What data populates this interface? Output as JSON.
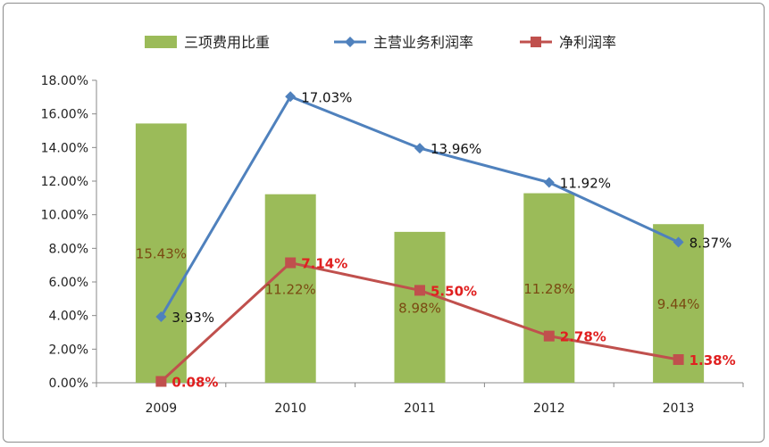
{
  "chart_data": {
    "type": "bar+line",
    "categories": [
      "2009",
      "2010",
      "2011",
      "2012",
      "2013"
    ],
    "ylim": [
      0,
      18
    ],
    "ytick_labels": [
      "0.00%",
      "2.00%",
      "4.00%",
      "6.00%",
      "8.00%",
      "10.00%",
      "12.00%",
      "14.00%",
      "16.00%",
      "18.00%"
    ],
    "legend_position": "top",
    "grid": false,
    "series": [
      {
        "name": "三项费用比重",
        "kind": "bar",
        "color": "#9bbb59",
        "values": [
          15.43,
          11.22,
          8.98,
          11.28,
          9.44
        ],
        "labels": [
          "15.43%",
          "11.22%",
          "8.98%",
          "11.28%",
          "9.44%"
        ]
      },
      {
        "name": "主营业务利润率",
        "kind": "line",
        "marker": "diamond",
        "color": "#4f81bd",
        "values": [
          3.93,
          17.03,
          13.96,
          11.92,
          8.37
        ],
        "labels": [
          "3.93%",
          "17.03%",
          "13.96%",
          "11.92%",
          "8.37%"
        ]
      },
      {
        "name": "净利润率",
        "kind": "line",
        "marker": "square",
        "color": "#c0504d",
        "values": [
          0.08,
          7.14,
          5.5,
          2.78,
          1.38
        ],
        "labels": [
          "0.08%",
          "7.14%",
          "5.50%",
          "2.78%",
          "1.38%"
        ]
      }
    ]
  }
}
